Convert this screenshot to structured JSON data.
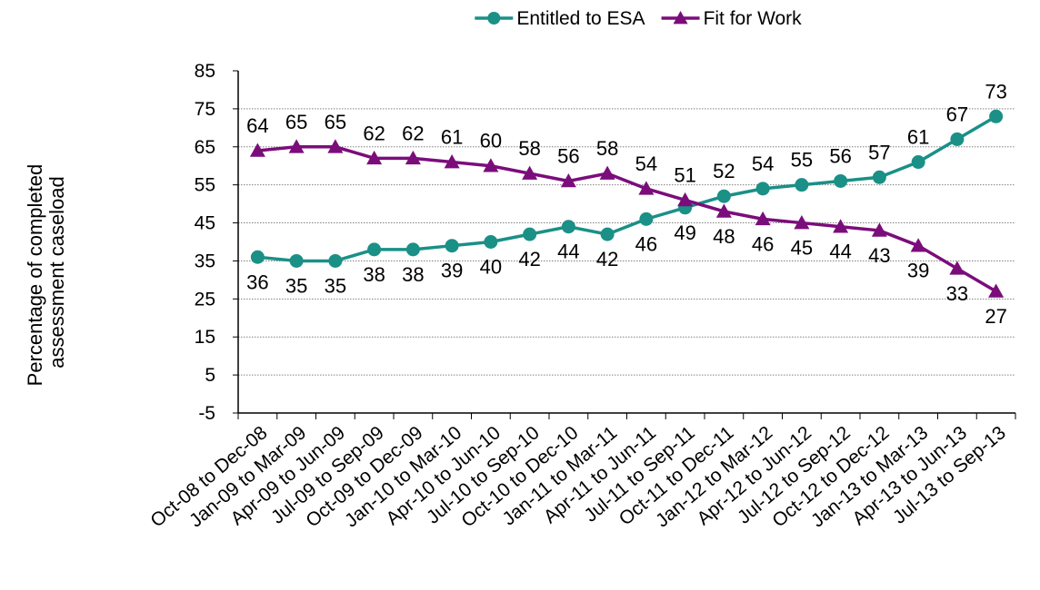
{
  "chart_data": {
    "type": "line",
    "categories": [
      "Oct-08 to Dec-08",
      "Jan-09 to Mar-09",
      "Apr-09 to Jun-09",
      "Jul-09 to Sep-09",
      "Oct-09 to Dec-09",
      "Jan-10 to Mar-10",
      "Apr-10 to Jun-10",
      "Jul-10 to Sep-10",
      "Oct-10 to Dec-10",
      "Jan-11 to Mar-11",
      "Apr-11 to Jun-11",
      "Jul-11 to Sep-11",
      "Oct-11 to Dec-11",
      "Jan-12 to Mar-12",
      "Apr-12 to Jun-12",
      "Jul-12 to Sep-12",
      "Oct-12 to Dec-12",
      "Jan-13 to Mar-13",
      "Apr-13 to Jun-13",
      "Jul-13 to Sep-13"
    ],
    "series": [
      {
        "name": "Entitled to ESA",
        "color": "#1a9087",
        "marker": "circle",
        "values": [
          36,
          35,
          35,
          38,
          38,
          39,
          40,
          42,
          44,
          42,
          46,
          49,
          52,
          54,
          55,
          56,
          57,
          61,
          67,
          73
        ]
      },
      {
        "name": "Fit for Work",
        "color": "#7b0d7b",
        "marker": "triangle",
        "values": [
          64,
          65,
          65,
          62,
          62,
          61,
          60,
          58,
          56,
          58,
          54,
          51,
          48,
          46,
          45,
          44,
          43,
          39,
          33,
          27
        ]
      }
    ],
    "xlabel": "",
    "ylabel": "Percentage of completed assessment caseload",
    "ylim": [
      -5,
      85
    ],
    "yticks": [
      -5,
      5,
      15,
      25,
      35,
      45,
      55,
      65,
      75,
      85
    ],
    "grid": true,
    "legend_position": "top"
  }
}
